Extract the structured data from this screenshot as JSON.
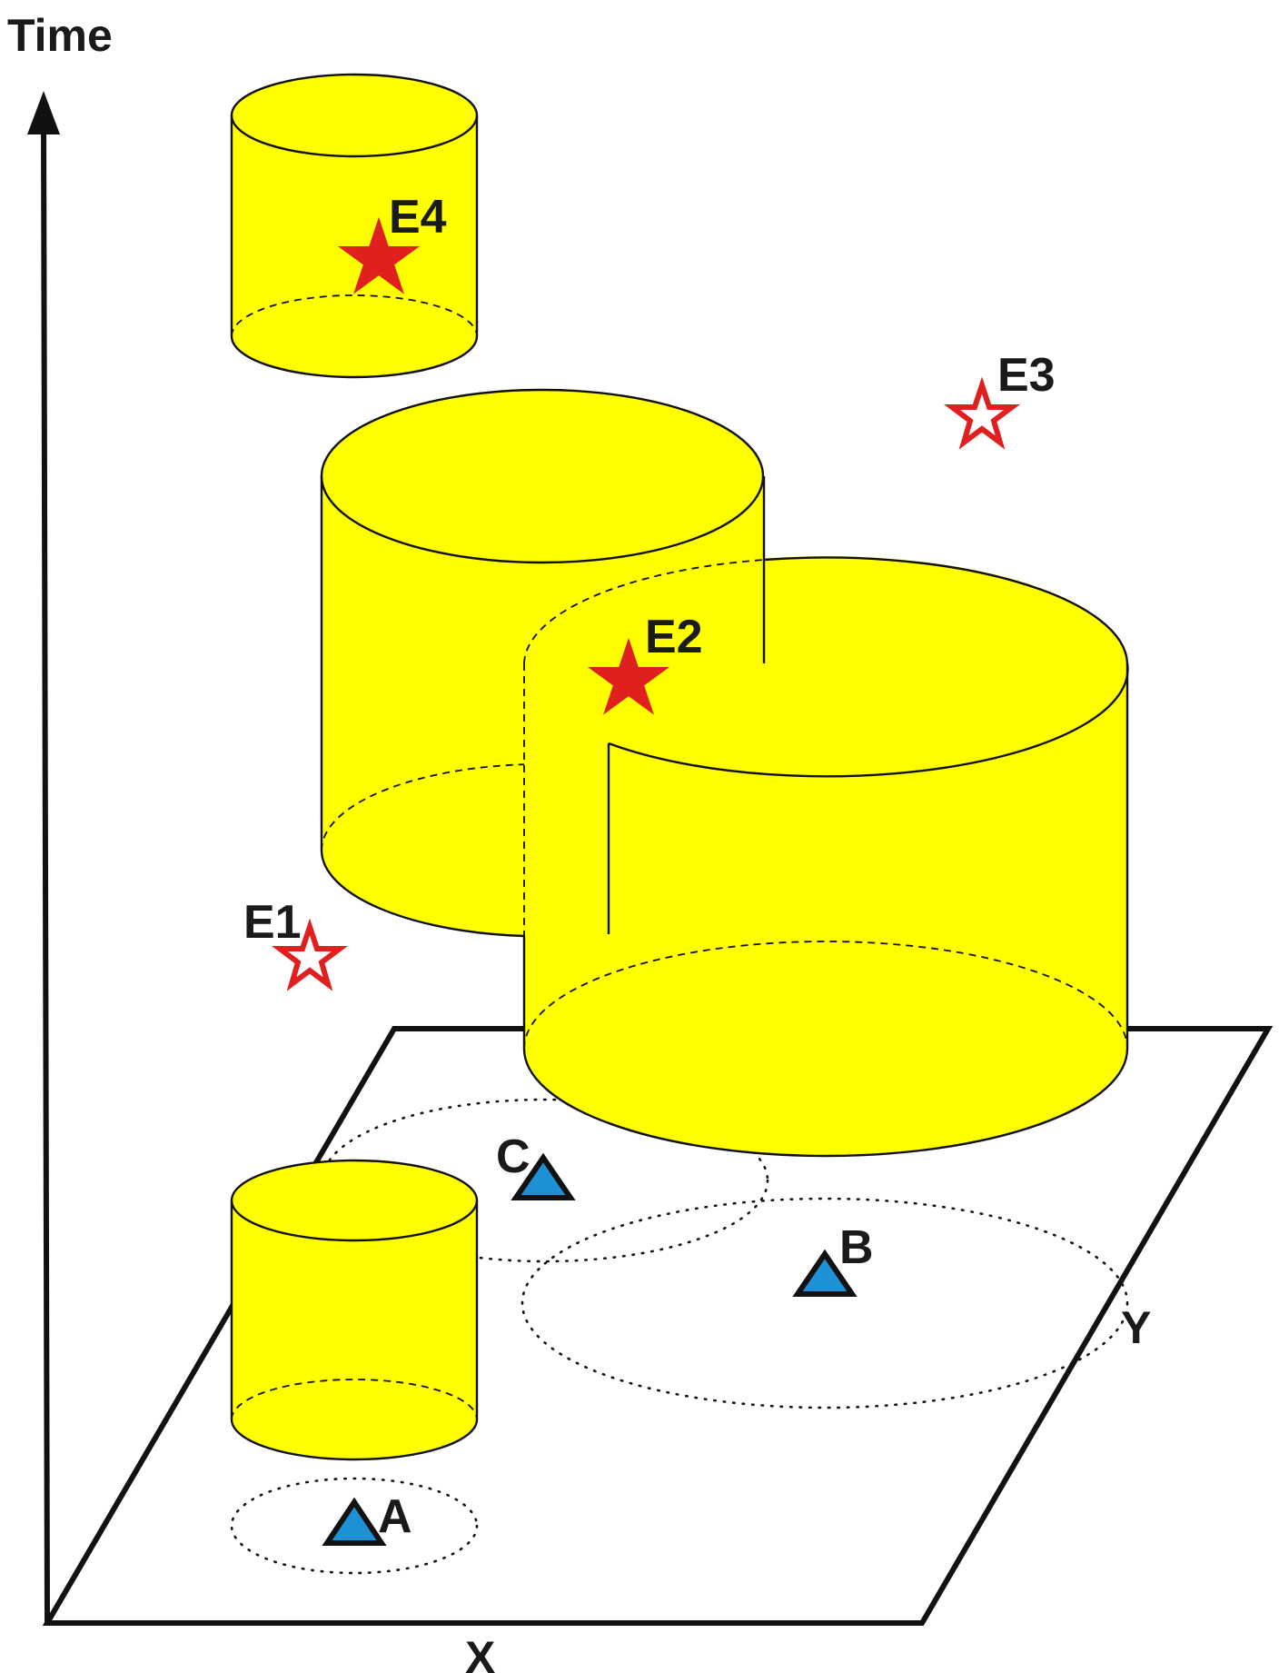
{
  "axes": {
    "time_label": "Time",
    "x_label": "X",
    "y_label": "Y"
  },
  "stations": [
    {
      "id": "A",
      "label": "A",
      "color": "#1e90d6"
    },
    {
      "id": "B",
      "label": "B",
      "color": "#1e90d6"
    },
    {
      "id": "C",
      "label": "C",
      "color": "#1e90d6"
    }
  ],
  "events": [
    {
      "id": "E1",
      "label": "E1",
      "style": "hollow",
      "color": "#e0201e"
    },
    {
      "id": "E2",
      "label": "E2",
      "style": "filled",
      "color": "#e0201e"
    },
    {
      "id": "E3",
      "label": "E3",
      "style": "hollow",
      "color": "#e0201e"
    },
    {
      "id": "E4",
      "label": "E4",
      "style": "filled",
      "color": "#e0201e"
    }
  ],
  "colors": {
    "cylinder": "#ffff00",
    "outline": "#111111"
  }
}
